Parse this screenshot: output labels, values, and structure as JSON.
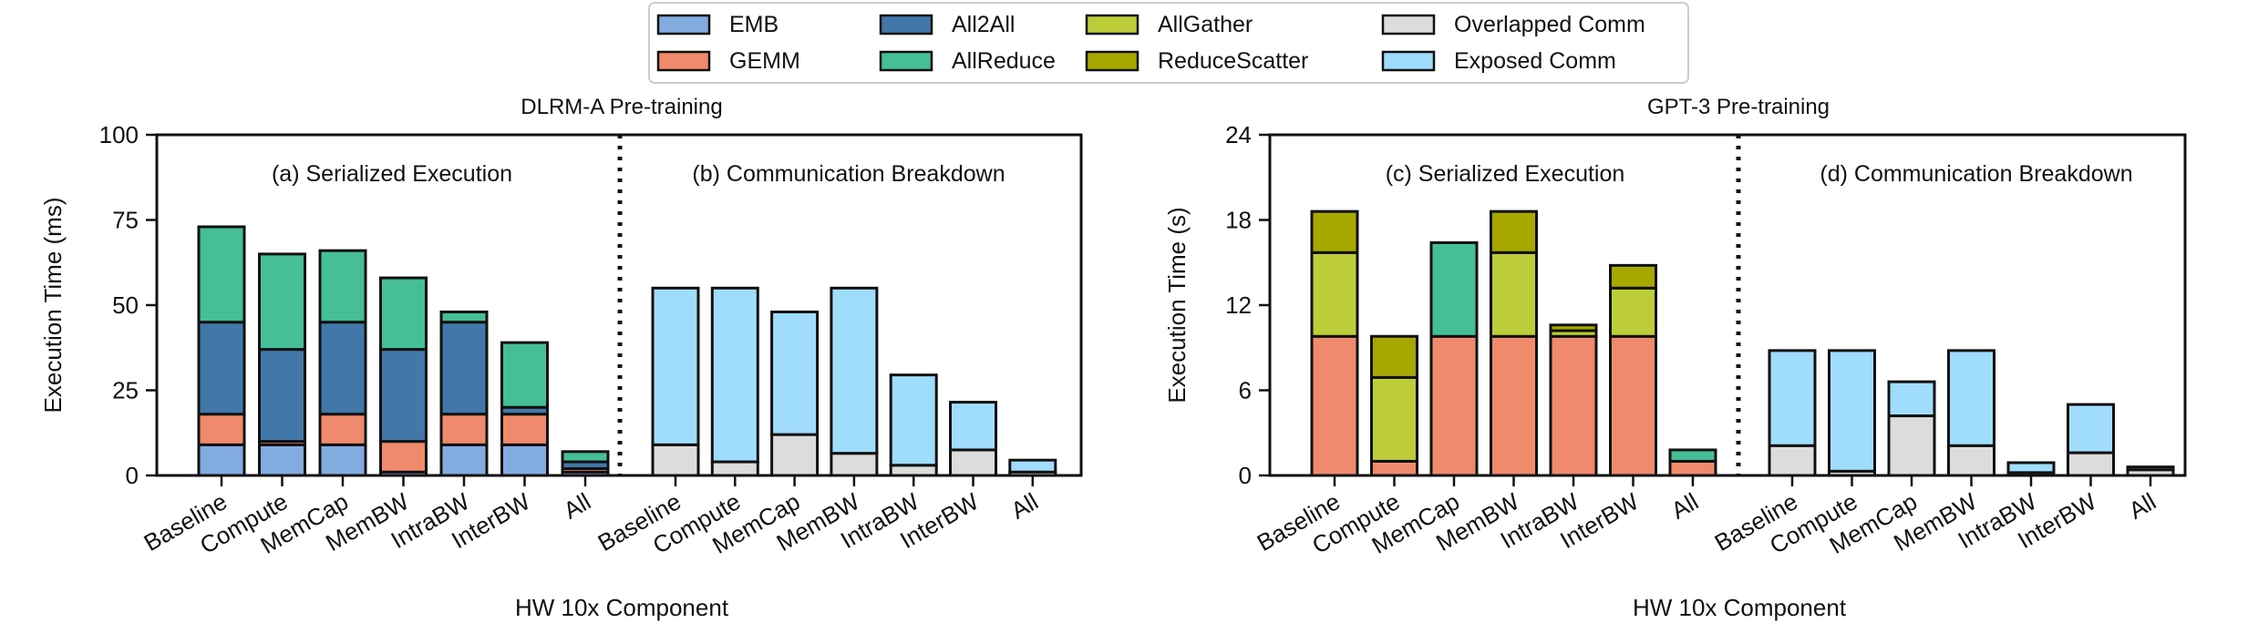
{
  "legend": {
    "items": [
      {
        "key": "EMB",
        "label": "EMB",
        "color": "#82ACE0"
      },
      {
        "key": "GEMM",
        "label": "GEMM",
        "color": "#F08A6C"
      },
      {
        "key": "All2All",
        "label": "All2All",
        "color": "#4277AA"
      },
      {
        "key": "AllReduce",
        "label": "AllReduce",
        "color": "#46BE98"
      },
      {
        "key": "AllGather",
        "label": "AllGather",
        "color": "#BDCD3A"
      },
      {
        "key": "ReduceScatter",
        "label": "ReduceScatter",
        "color": "#A6A800"
      },
      {
        "key": "Overlapped",
        "label": "Overlapped Comm",
        "color": "#DCDCDC"
      },
      {
        "key": "Exposed",
        "label": "Exposed Comm",
        "color": "#A0DCFC"
      }
    ]
  },
  "chart_data": [
    {
      "type": "bar",
      "stacked": true,
      "title": "DLRM-A Pre-training",
      "xlabel": "HW 10x Component",
      "ylabel": "Execution Time (ms)",
      "ylim": [
        0,
        100
      ],
      "yticks": [
        0,
        25,
        50,
        75,
        100
      ],
      "panels": [
        {
          "label": "(a) Serialized Execution",
          "categories": [
            "Baseline",
            "Compute",
            "MemCap",
            "MemBW",
            "IntraBW",
            "InterBW",
            "All"
          ],
          "series": [
            {
              "key": "EMB",
              "values": [
                9,
                9,
                9,
                1,
                9,
                9,
                1
              ]
            },
            {
              "key": "GEMM",
              "values": [
                9,
                1,
                9,
                9,
                9,
                9,
                1
              ]
            },
            {
              "key": "All2All",
              "values": [
                27,
                27,
                27,
                27,
                27,
                2,
                2
              ]
            },
            {
              "key": "AllReduce",
              "values": [
                28,
                28,
                21,
                21,
                3,
                19,
                3
              ]
            }
          ]
        },
        {
          "label": "(b) Communication Breakdown",
          "categories": [
            "Baseline",
            "Compute",
            "MemCap",
            "MemBW",
            "IntraBW",
            "InterBW",
            "All"
          ],
          "series": [
            {
              "key": "Overlapped",
              "values": [
                9,
                4,
                12,
                6.5,
                3,
                7.5,
                1
              ]
            },
            {
              "key": "Exposed",
              "values": [
                46,
                51,
                36,
                48.5,
                26.5,
                14,
                3.5
              ]
            }
          ]
        }
      ]
    },
    {
      "type": "bar",
      "stacked": true,
      "title": "GPT-3 Pre-training",
      "xlabel": "HW 10x Component",
      "ylabel": "Execution Time (s)",
      "ylim": [
        0,
        24
      ],
      "yticks": [
        0,
        6,
        12,
        18,
        24
      ],
      "panels": [
        {
          "label": "(c) Serialized Execution",
          "categories": [
            "Baseline",
            "Compute",
            "MemCap",
            "MemBW",
            "IntraBW",
            "InterBW",
            "All"
          ],
          "series": [
            {
              "key": "GEMM",
              "values": [
                9.8,
                1,
                9.8,
                9.8,
                9.8,
                9.8,
                1
              ]
            },
            {
              "key": "AllReduce",
              "values": [
                0,
                0,
                6.6,
                0,
                0,
                0,
                0.8
              ]
            },
            {
              "key": "AllGather",
              "values": [
                5.9,
                5.9,
                0,
                5.9,
                0.4,
                3.4,
                0
              ]
            },
            {
              "key": "ReduceScatter",
              "values": [
                2.9,
                2.9,
                0,
                2.9,
                0.4,
                1.6,
                0
              ]
            }
          ]
        },
        {
          "label": "(d) Communication Breakdown",
          "categories": [
            "Baseline",
            "Compute",
            "MemCap",
            "MemBW",
            "IntraBW",
            "InterBW",
            "All"
          ],
          "series": [
            {
              "key": "Overlapped",
              "values": [
                2.1,
                0.3,
                4.2,
                2.1,
                0.2,
                1.6,
                0.4
              ]
            },
            {
              "key": "Exposed",
              "values": [
                6.7,
                8.5,
                2.4,
                6.7,
                0.7,
                3.4,
                0.2
              ]
            }
          ]
        }
      ]
    }
  ]
}
